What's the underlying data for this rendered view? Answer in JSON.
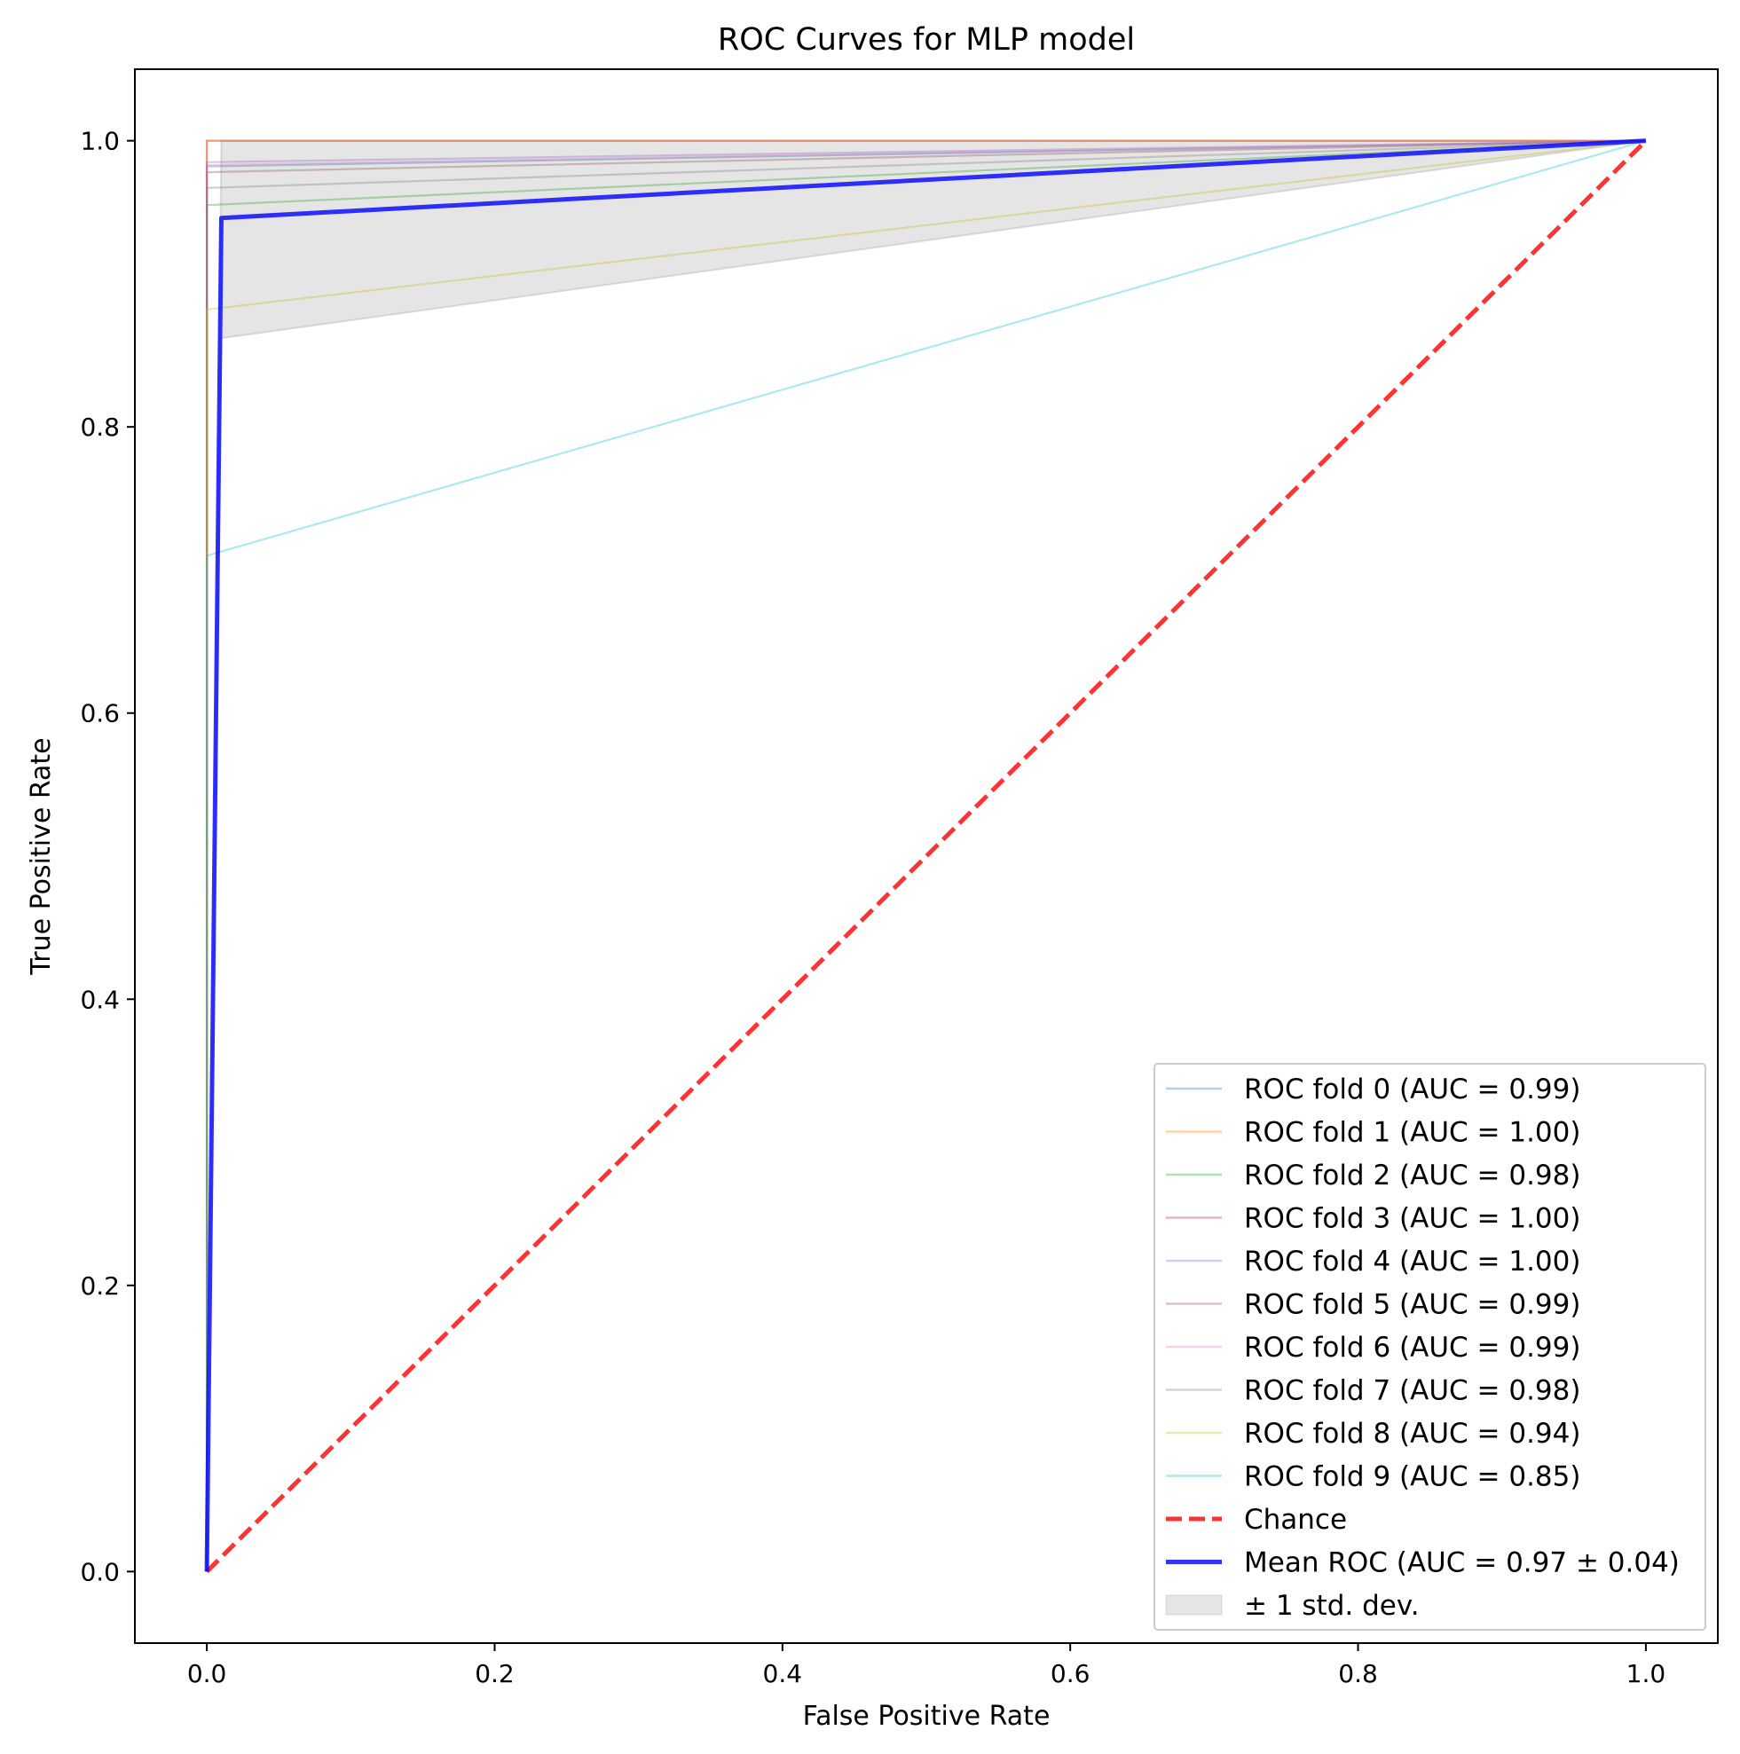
{
  "chart_data": {
    "type": "line",
    "title": "ROC Curves for MLP model",
    "xlabel": "False Positive Rate",
    "ylabel": "True Positive Rate",
    "xlim": [
      -0.05,
      1.05
    ],
    "ylim": [
      -0.05,
      1.05
    ],
    "x_ticks": [
      0.0,
      0.2,
      0.4,
      0.6,
      0.8,
      1.0
    ],
    "y_ticks": [
      0.0,
      0.2,
      0.4,
      0.6,
      0.8,
      1.0
    ],
    "x_tick_labels": [
      "0.0",
      "0.2",
      "0.4",
      "0.6",
      "0.8",
      "1.0"
    ],
    "y_tick_labels": [
      "0.0",
      "0.2",
      "0.4",
      "0.6",
      "0.8",
      "1.0"
    ],
    "grid": false,
    "legend_position": "lower-right",
    "series": [
      {
        "name": "ROC fold 0 (AUC = 0.99)",
        "color": "#1f77b4",
        "x": [
          0,
          0,
          1
        ],
        "y": [
          0,
          0.982,
          1
        ]
      },
      {
        "name": "ROC fold 1 (AUC = 1.00)",
        "color": "#ff7f0e",
        "x": [
          0,
          0,
          1
        ],
        "y": [
          0,
          1.0,
          1
        ]
      },
      {
        "name": "ROC fold 2 (AUC = 0.98)",
        "color": "#2ca02c",
        "x": [
          0,
          0,
          1
        ],
        "y": [
          0,
          0.955,
          1
        ]
      },
      {
        "name": "ROC fold 3 (AUC = 1.00)",
        "color": "#d62728",
        "x": [
          0,
          0,
          1
        ],
        "y": [
          0,
          1.0,
          1
        ]
      },
      {
        "name": "ROC fold 4 (AUC = 1.00)",
        "color": "#9467bd",
        "x": [
          0,
          0,
          1
        ],
        "y": [
          0,
          0.985,
          1
        ]
      },
      {
        "name": "ROC fold 5 (AUC = 0.99)",
        "color": "#8c564b",
        "x": [
          0,
          0,
          1
        ],
        "y": [
          0,
          0.978,
          1
        ]
      },
      {
        "name": "ROC fold 6 (AUC = 0.99)",
        "color": "#e377c2",
        "x": [
          0,
          0,
          1
        ],
        "y": [
          0,
          0.983,
          1
        ]
      },
      {
        "name": "ROC fold 7 (AUC = 0.98)",
        "color": "#7f7f7f",
        "x": [
          0,
          0,
          1
        ],
        "y": [
          0,
          0.967,
          1
        ]
      },
      {
        "name": "ROC fold 8 (AUC = 0.94)",
        "color": "#bcbd22",
        "x": [
          0,
          0,
          1
        ],
        "y": [
          0,
          0.882,
          1
        ]
      },
      {
        "name": "ROC fold 9 (AUC = 0.85)",
        "color": "#17becf",
        "x": [
          0,
          0,
          1
        ],
        "y": [
          0,
          0.71,
          1
        ]
      }
    ],
    "chance": {
      "name": "Chance",
      "color": "#ff0000",
      "x": [
        0,
        1
      ],
      "y": [
        0,
        1
      ]
    },
    "mean_roc": {
      "name": "Mean ROC (AUC = 0.97 ± 0.04)",
      "color": "#0000ff",
      "x": [
        0,
        0.0101,
        1
      ],
      "y": [
        0,
        0.946,
        1
      ]
    },
    "std_band": {
      "name": "± 1 std. dev.",
      "color": "#d3d3d3",
      "x": [
        0,
        0.0101,
        1
      ],
      "lower": [
        0,
        0.862,
        1
      ],
      "upper": [
        0,
        1.0,
        1
      ]
    }
  }
}
